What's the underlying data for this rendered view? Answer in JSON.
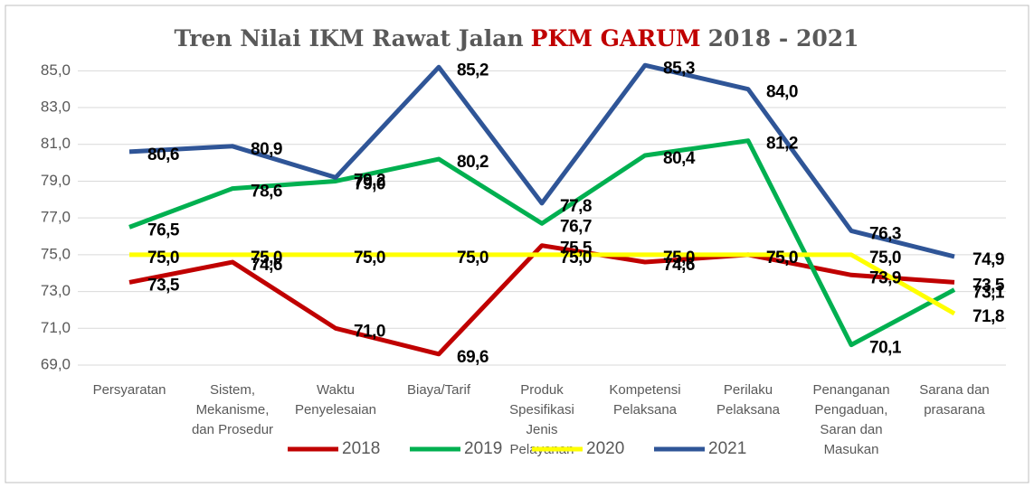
{
  "chart_data": {
    "type": "line",
    "title": [
      "Tren Nilai IKM Rawat Jalan",
      "PKM GARUM",
      "2018 - 2021"
    ],
    "title_colors": [
      "#595959",
      "#c00000",
      "#595959"
    ],
    "categories": [
      "Persyaratan",
      "Sistem, Mekanisme, dan Prosedur",
      "Waktu Penyelesaian",
      "Biaya/Tarif",
      "Produk Spesifikasi Jenis Pelayanan",
      "Kompetensi Pelaksana",
      "Perilaku Pelaksana",
      "Penanganan Pengaduan, Saran dan Masukan",
      "Sarana dan prasarana"
    ],
    "series": [
      {
        "name": "2018",
        "color": "#c00000",
        "values": [
          73.5,
          74.6,
          71.0,
          69.6,
          75.5,
          74.6,
          75.0,
          73.9,
          73.5
        ],
        "value_labels": [
          "73,5",
          "74,6",
          "71,0",
          "69,6",
          "75,5",
          "74,6",
          "75,0",
          "73,9",
          "73,5"
        ]
      },
      {
        "name": "2019",
        "color": "#00b050",
        "values": [
          76.5,
          78.6,
          79.0,
          80.2,
          76.7,
          80.4,
          81.2,
          70.1,
          73.1
        ],
        "value_labels": [
          "76,5",
          "78,6",
          "79,0",
          "80,2",
          "76,7",
          "80,4",
          "81,2",
          "70,1",
          "73,1"
        ]
      },
      {
        "name": "2020",
        "color": "#ffff00",
        "values": [
          75.0,
          75.0,
          75.0,
          75.0,
          75.0,
          75.0,
          75.0,
          75.0,
          71.8
        ],
        "value_labels": [
          "75,0",
          "75,0",
          "75,0",
          "75,0",
          "75,0",
          "75,0",
          "75,0",
          "75,0",
          "71,8"
        ]
      },
      {
        "name": "2021",
        "color": "#2f5597",
        "values": [
          80.6,
          80.9,
          79.2,
          85.2,
          77.8,
          85.3,
          84.0,
          76.3,
          74.9
        ],
        "value_labels": [
          "80,6",
          "80,9",
          "79,2",
          "85,2",
          "77,8",
          "85,3",
          "84,0",
          "76,3",
          "74,9"
        ]
      }
    ],
    "ylim": [
      69,
      86
    ],
    "yticks": [
      {
        "value": 69,
        "label": "69,0"
      },
      {
        "value": 71,
        "label": "71,0"
      },
      {
        "value": 73,
        "label": "73,0"
      },
      {
        "value": 75,
        "label": "75,0"
      },
      {
        "value": 77,
        "label": "77,0"
      },
      {
        "value": 79,
        "label": "79,0"
      },
      {
        "value": 81,
        "label": "81,0"
      },
      {
        "value": 83,
        "label": "83,0"
      },
      {
        "value": 85,
        "label": "85,0"
      }
    ],
    "grid": true,
    "legend": "bottom"
  }
}
